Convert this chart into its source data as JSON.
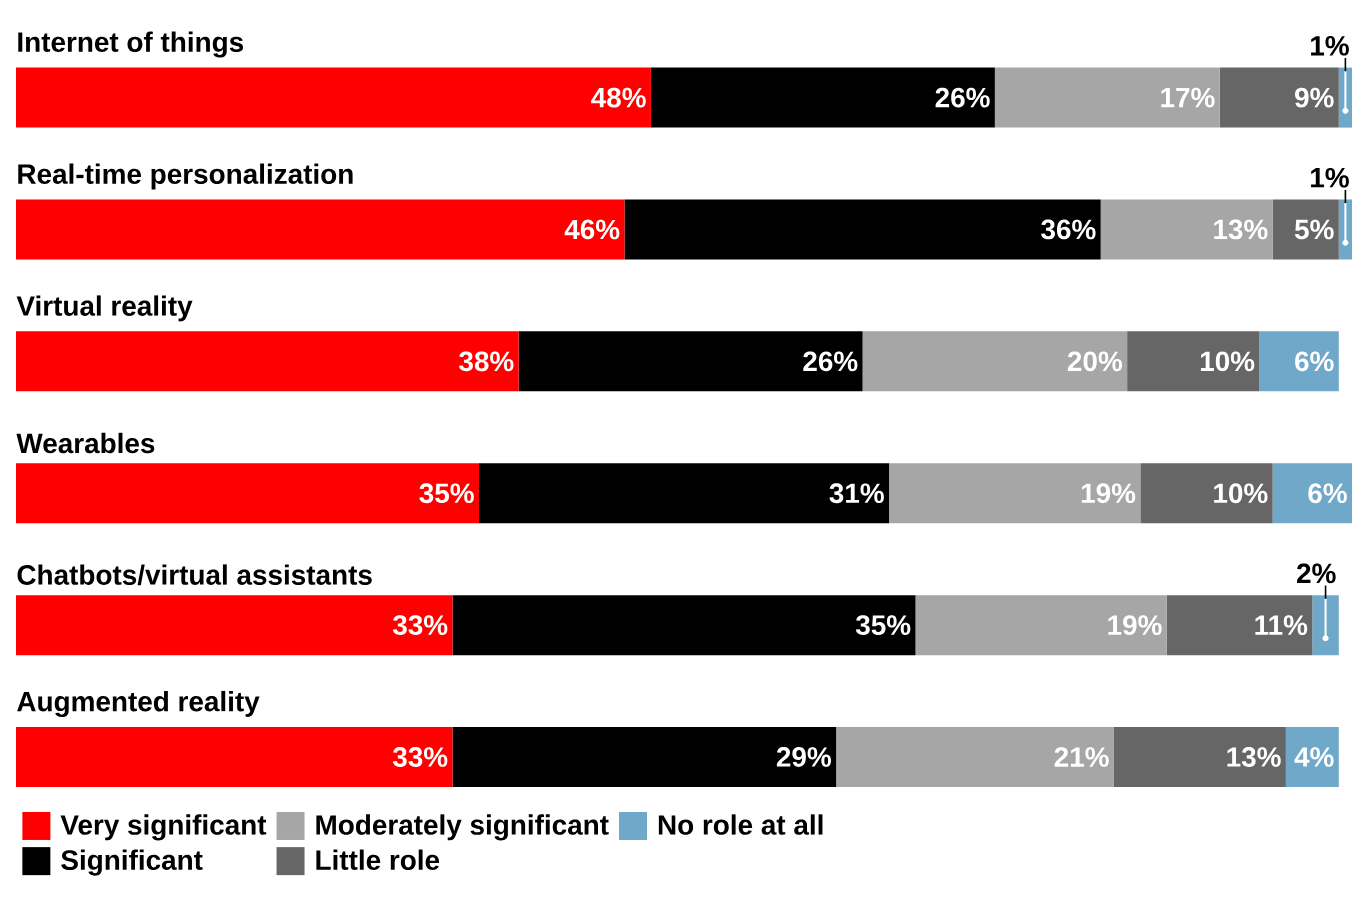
{
  "chart_data": {
    "type": "bar",
    "orientation": "horizontal",
    "stacked": true,
    "legend": "bottom",
    "categories": [
      "Internet of things",
      "Real-time personalization",
      "Virtual reality",
      "Wearables",
      "Chatbots/virtual assistants",
      "Augmented reality"
    ],
    "series": [
      {
        "name": "Very significant",
        "color": "#ff0000",
        "values": [
          48,
          46,
          38,
          35,
          33,
          33
        ],
        "value_labels": [
          "48%",
          "46%",
          "38%",
          "35%",
          "33%",
          "33%"
        ]
      },
      {
        "name": "Significant",
        "color": "#000000",
        "values": [
          26,
          36,
          26,
          31,
          35,
          29
        ],
        "value_labels": [
          "26%",
          "36%",
          "26%",
          "31%",
          "35%",
          "29%"
        ]
      },
      {
        "name": "Moderately significant",
        "color": "#a6a6a6",
        "values": [
          17,
          13,
          20,
          19,
          19,
          21
        ],
        "value_labels": [
          "17%",
          "13%",
          "20%",
          "19%",
          "19%",
          "21%"
        ]
      },
      {
        "name": "Little role",
        "color": "#666666",
        "values": [
          9,
          5,
          10,
          10,
          11,
          13
        ],
        "value_labels": [
          "9%",
          "5%",
          "10%",
          "10%",
          "11%",
          "13%"
        ]
      },
      {
        "name": "No role at all",
        "color": "#6fa8c8",
        "values": [
          1,
          1,
          6,
          6,
          2,
          4
        ],
        "value_labels": [
          "1%",
          "1%",
          "6%",
          "6%",
          "2%",
          "4%"
        ]
      }
    ]
  }
}
